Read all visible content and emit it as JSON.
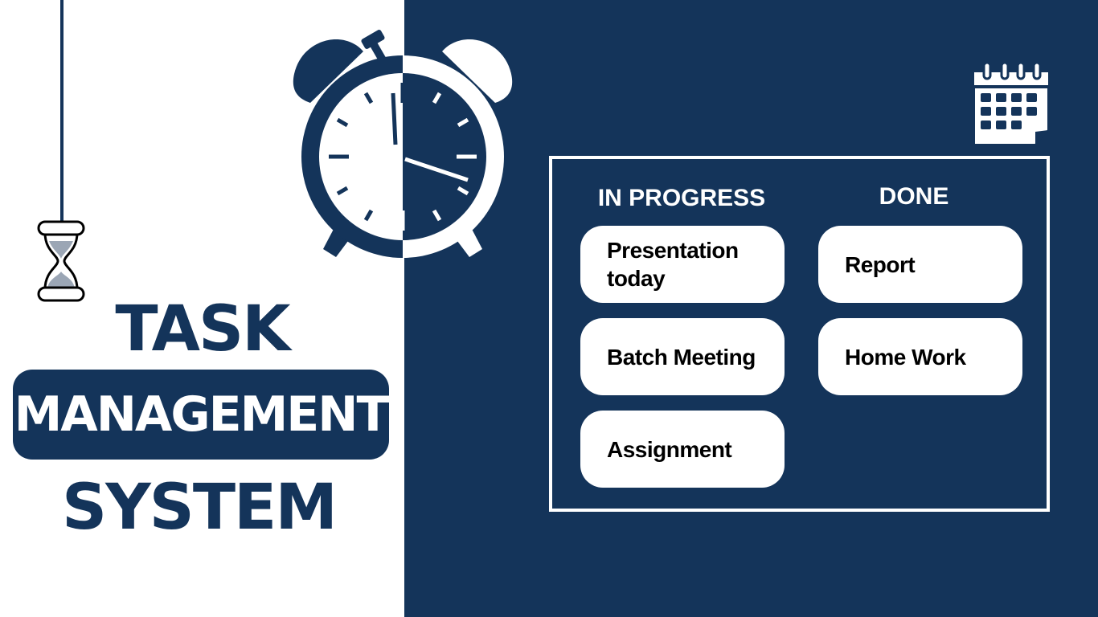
{
  "title": {
    "line1": "TASK",
    "line2": "MANAGEMENT",
    "line3": "SYSTEM"
  },
  "board": {
    "in_progress": {
      "header": "IN PROGRESS",
      "items": [
        "Presentation today",
        "Batch Meeting",
        "Assignment"
      ]
    },
    "done": {
      "header": "DONE",
      "items": [
        "Report",
        "Home Work"
      ]
    }
  },
  "icons": [
    "hourglass-icon",
    "alarm-clock-icon",
    "calendar-icon"
  ],
  "colors": {
    "navy": "#14345a",
    "white": "#ffffff",
    "sand": "#9ba6b5"
  }
}
